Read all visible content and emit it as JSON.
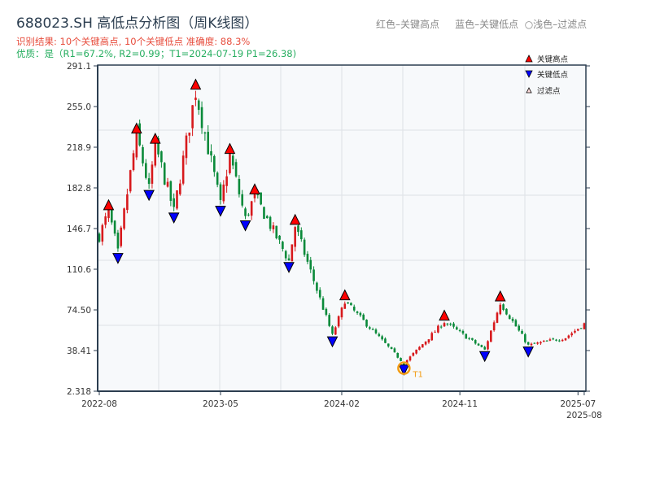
{
  "header": {
    "title": "688023.SH 高低点分析图（周K线图）",
    "result_line": "识别结果: 10个关键高点, 10个关键低点   准确度: 88.3%",
    "quality_line": "优质：是（R1=67.2%, R2=0.99；T1=2024-07-19 P1=26.38)",
    "color_note": "红色–关键高点     蓝色–关键低点  ○浅色–过滤点"
  },
  "colors": {
    "up": "#d7191c",
    "down": "#0a8a3a",
    "high_marker": "#ff0000",
    "low_marker": "#0000ff",
    "t1_circle": "#f39c12",
    "plot_bg": "#f7f9fb"
  },
  "chart_data": {
    "type": "candlestick",
    "title": "688023.SH 高低点分析图（周K线图）",
    "ylim": [
      2.318,
      291.1
    ],
    "yticks": [
      "291.1",
      "255.0",
      "218.9",
      "182.8",
      "146.7",
      "110.6",
      "74.50",
      "38.41",
      "2.318"
    ],
    "ytick_values": [
      291.1,
      255.0,
      218.9,
      182.8,
      146.7,
      110.6,
      74.5,
      38.41,
      2.318
    ],
    "xticks": [
      "2022-08",
      "2023-05",
      "2024-02",
      "2024-11",
      "2025-07",
      "2025-08"
    ],
    "xtick_weeks": [
      0,
      39,
      78,
      116,
      154,
      156
    ],
    "weeks": 157,
    "price_path": [
      [
        0,
        140
      ],
      [
        3,
        162
      ],
      [
        6,
        126
      ],
      [
        12,
        230
      ],
      [
        16,
        182
      ],
      [
        18,
        221
      ],
      [
        24,
        162
      ],
      [
        31,
        269
      ],
      [
        39,
        168
      ],
      [
        42,
        212
      ],
      [
        47,
        155
      ],
      [
        50,
        176
      ],
      [
        61,
        118
      ],
      [
        63,
        149
      ],
      [
        75,
        52
      ],
      [
        79,
        82
      ],
      [
        98,
        27
      ],
      [
        111,
        64
      ],
      [
        124,
        39
      ],
      [
        129,
        81
      ],
      [
        138,
        43
      ],
      [
        150,
        50
      ],
      [
        156,
        62
      ]
    ],
    "key_highs": [
      [
        3,
        162
      ],
      [
        12,
        230
      ],
      [
        18,
        221
      ],
      [
        31,
        269
      ],
      [
        42,
        212
      ],
      [
        50,
        176
      ],
      [
        63,
        149
      ],
      [
        79,
        82
      ],
      [
        111,
        64
      ],
      [
        129,
        81
      ]
    ],
    "key_lows": [
      [
        6,
        126
      ],
      [
        16,
        182
      ],
      [
        24,
        162
      ],
      [
        39,
        168
      ],
      [
        47,
        155
      ],
      [
        61,
        118
      ],
      [
        75,
        52
      ],
      [
        98,
        27
      ],
      [
        124,
        39
      ],
      [
        138,
        43
      ]
    ],
    "t1": {
      "week": 98,
      "price": 26.38,
      "label": "T1"
    },
    "legend": {
      "position": "top-right",
      "items": [
        "关键高点",
        "关键低点",
        "过滤点"
      ]
    }
  }
}
